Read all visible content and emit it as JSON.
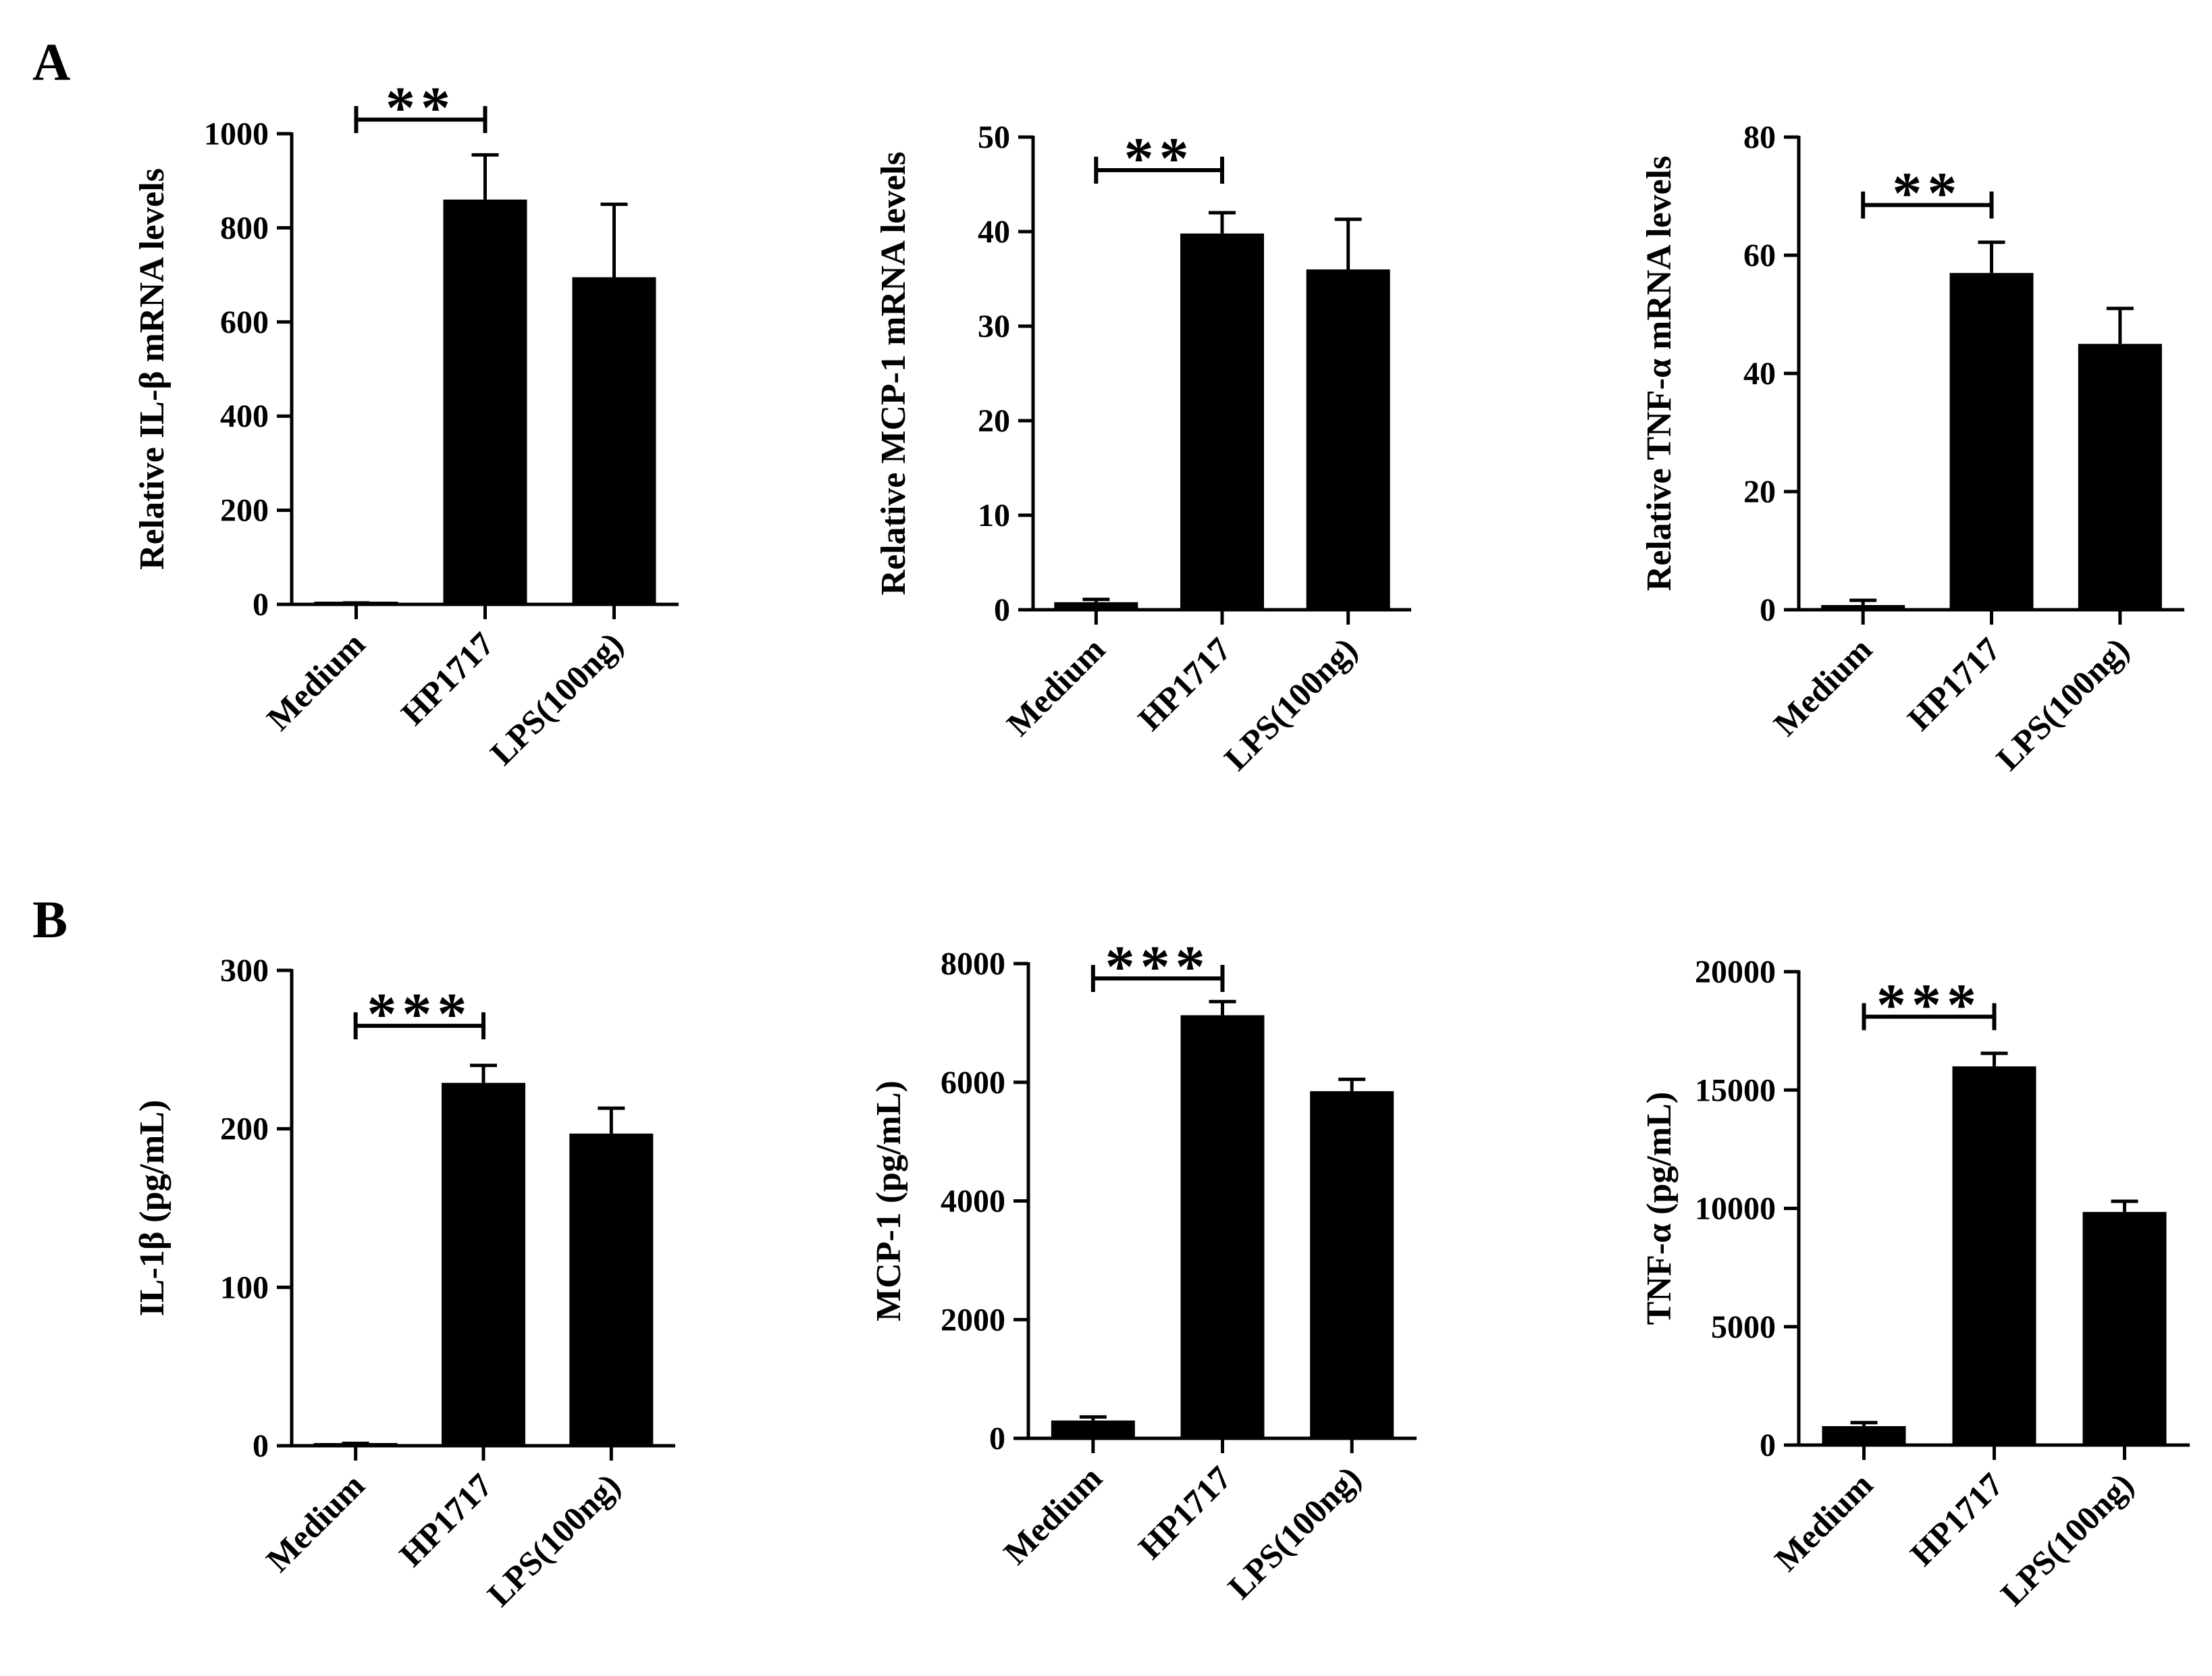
{
  "figure": {
    "panel_labels": [
      "A",
      "B"
    ]
  },
  "colors": {
    "bar": "#000000",
    "axis": "#000000",
    "background": "#ffffff"
  },
  "chart_data": [
    {
      "id": "A1",
      "type": "bar",
      "panel": "A",
      "categories": [
        "Medium",
        "HP1717",
        "LPS(100ng)"
      ],
      "values": [
        1,
        860,
        695
      ],
      "errors": [
        2,
        95,
        155
      ],
      "ylabel": "Relative IL-β mRNA levels",
      "ylim": [
        0,
        1000
      ],
      "yticks": [
        0,
        200,
        400,
        600,
        800,
        1000
      ],
      "significance": {
        "from": 0,
        "to": 1,
        "label": "**",
        "y": 1030
      }
    },
    {
      "id": "A2",
      "type": "bar",
      "panel": "A",
      "categories": [
        "Medium",
        "HP1717",
        "LPS(100ng)"
      ],
      "values": [
        0.8,
        39.8,
        36
      ],
      "errors": [
        0.3,
        2.2,
        5.3
      ],
      "ylabel": "Relative MCP-1 mRNA levels",
      "ylim": [
        0,
        50
      ],
      "yticks": [
        0,
        10,
        20,
        30,
        40,
        50
      ],
      "significance": {
        "from": 0,
        "to": 1,
        "label": "**",
        "y": 46.5
      }
    },
    {
      "id": "A3",
      "type": "bar",
      "panel": "A",
      "categories": [
        "Medium",
        "HP1717",
        "LPS(100ng)"
      ],
      "values": [
        0.8,
        57,
        45
      ],
      "errors": [
        0.8,
        5.2,
        6
      ],
      "ylabel": "Relative TNF-α  mRNA levels",
      "ylim": [
        0,
        80
      ],
      "yticks": [
        0,
        20,
        40,
        60,
        80
      ],
      "significance": {
        "from": 0,
        "to": 1,
        "label": "**",
        "y": 68.5
      }
    },
    {
      "id": "B1",
      "type": "bar",
      "panel": "B",
      "categories": [
        "Medium",
        "HP1717",
        "LPS(100ng)"
      ],
      "values": [
        1,
        229,
        197
      ],
      "errors": [
        0.5,
        11,
        16
      ],
      "ylabel": "IL-1β (pg/mL)",
      "ylim": [
        0,
        300
      ],
      "yticks": [
        0,
        100,
        200,
        300
      ],
      "significance": {
        "from": 0,
        "to": 1,
        "label": "***",
        "y": 265
      }
    },
    {
      "id": "B2",
      "type": "bar",
      "panel": "B",
      "categories": [
        "Medium",
        "HP1717",
        "LPS(100ng)"
      ],
      "values": [
        300,
        7130,
        5850
      ],
      "errors": [
        60,
        230,
        200
      ],
      "ylabel": "MCP-1 (pg/mL)",
      "ylim": [
        0,
        8000
      ],
      "yticks": [
        0,
        2000,
        4000,
        6000,
        8000
      ],
      "significance": {
        "from": 0,
        "to": 1,
        "label": "***",
        "y": 7750
      }
    },
    {
      "id": "B3",
      "type": "bar",
      "panel": "B",
      "categories": [
        "Medium",
        "HP1717",
        "LPS(100ng)"
      ],
      "values": [
        800,
        16000,
        9850
      ],
      "errors": [
        150,
        550,
        450
      ],
      "ylabel": "TNF-α (pg/mL)",
      "ylim": [
        0,
        20000
      ],
      "yticks": [
        0,
        5000,
        10000,
        15000,
        20000
      ],
      "significance": {
        "from": 0,
        "to": 1,
        "label": "***",
        "y": 18100
      }
    }
  ]
}
